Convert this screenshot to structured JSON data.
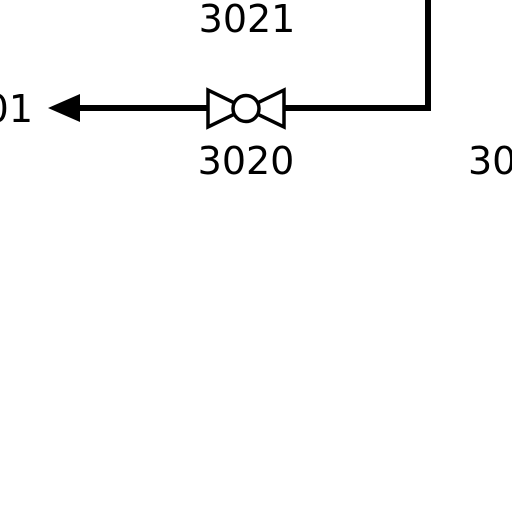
{
  "labels": {
    "top_tag": "3021",
    "valve_tag": "3020",
    "left_tag_partial": "01",
    "right_tag_partial": "30"
  },
  "colors": {
    "line": "#000000",
    "background": "#ffffff"
  },
  "symbols": {
    "arrow": "arrowhead-icon",
    "valve": "gate-valve-icon"
  }
}
